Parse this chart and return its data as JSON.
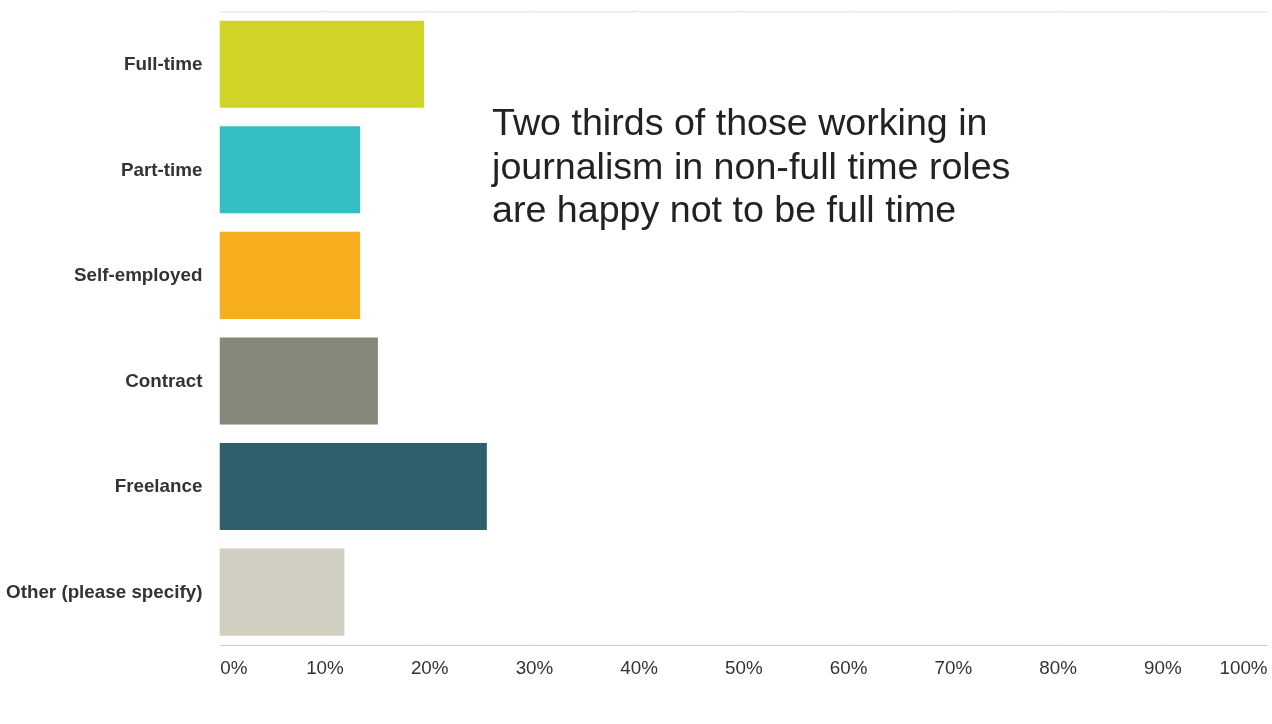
{
  "chart_data": {
    "type": "bar",
    "orientation": "horizontal",
    "categories": [
      "Full-time",
      "Part-time",
      "Self-employed",
      "Contract",
      "Freelance",
      "Other (please specify)"
    ],
    "values": [
      19.5,
      13.4,
      13.4,
      15.1,
      25.5,
      11.9
    ],
    "colors": [
      "#cfd427",
      "#33bec1",
      "#f6ae1f",
      "#87887a",
      "#2e5f6c",
      "#d0cfc1"
    ],
    "xlim": [
      0,
      100
    ],
    "xticks": [
      {
        "value": 0,
        "label": "0%"
      },
      {
        "value": 10,
        "label": "10%"
      },
      {
        "value": 20,
        "label": "20%"
      },
      {
        "value": 30,
        "label": "30%"
      },
      {
        "value": 40,
        "label": "40%"
      },
      {
        "value": 50,
        "label": "50%"
      },
      {
        "value": 60,
        "label": "60%"
      },
      {
        "value": 70,
        "label": "70%"
      },
      {
        "value": 80,
        "label": "80%"
      },
      {
        "value": 90,
        "label": "90%"
      },
      {
        "value": 100,
        "label": "100%"
      }
    ],
    "grid": "x",
    "annotations": [
      "Two thirds of those working in journalism in non-full time roles are happy not to be full time"
    ]
  }
}
